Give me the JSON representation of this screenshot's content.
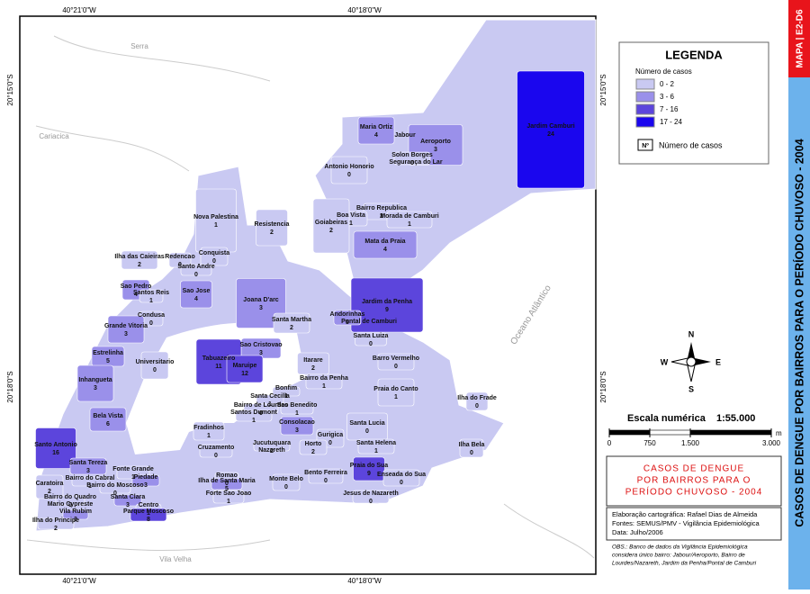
{
  "map": {
    "side_code": "MAPA | E2-D6",
    "side_title": "CASOS DE DENGUE POR BAIRROS  PARA O PERÍODO CHUVOSO - 2004",
    "coordinates": {
      "top": [
        "40°21'0\"W",
        "40°18'0\"W"
      ],
      "bottom": [
        "40°21'0\"W",
        "40°18'0\"W"
      ],
      "left": [
        "20°15'0\"S",
        "20°18'0\"S"
      ],
      "right": [
        "20°15'0\"S",
        "20°18'0\"S"
      ]
    },
    "places": [
      "Serra",
      "Cariacica",
      "Vila Velha",
      "Oceano Atlântico"
    ],
    "legend": {
      "title": "LEGENDA",
      "subtitle": "Número de casos",
      "classes": [
        {
          "label": "0 - 2",
          "color": "#c9c9f2"
        },
        {
          "label": "3 - 6",
          "color": "#9a90ea"
        },
        {
          "label": "7 - 16",
          "color": "#5c45dc"
        },
        {
          "label": "17 - 24",
          "color": "#1a06ee"
        }
      ],
      "symbol": "Nº",
      "symbol_label": "Número de casos"
    },
    "compass": [
      "N",
      "S",
      "E",
      "W"
    ],
    "scale": {
      "title": "Escala numérica",
      "ratio": "1:55.000",
      "unit": "m",
      "xlim": [
        0,
        3000
      ],
      "ticks": [
        0,
        750,
        {
          "value": 1500,
          "label": "1.500"
        },
        {
          "value": 3000,
          "label": "3.000"
        }
      ]
    },
    "title_box": [
      "CASOS DE DENGUE",
      "POR BAIRROS PARA O",
      "PERÍODO CHUVOSO - 2004"
    ],
    "credits": [
      "Elaboração cartográfica: Rafael Dias de Almeida",
      "Fontes: SEMUS/PMV - Vigilância Epidemiológica",
      "Data: Julho/2006"
    ],
    "notes": [
      "OBS.: Banco de dados da Vigilância Epidemiológica",
      "considera único bairro: Jabour/Aeroporto, Bairro de",
      "Lourdes/Nazareth, Jardim da Penha/Pontal de Camburi"
    ],
    "neighborhoods": [
      {
        "name": "Jardim Camburi",
        "cases": 24
      },
      {
        "name": "Maria Ortiz",
        "cases": 4
      },
      {
        "name": "Jabour"
      },
      {
        "name": "Aeroporto",
        "cases": 3
      },
      {
        "name": "Solon Borges",
        "cases": 0
      },
      {
        "name": "Segurança do Lar"
      },
      {
        "name": "Antonio Honorio",
        "cases": 0
      },
      {
        "name": "Bairro Republica",
        "cases": 2
      },
      {
        "name": "Boa Vista",
        "cases": 1
      },
      {
        "name": "Morada de Camburi",
        "cases": 1
      },
      {
        "name": "Goiabeiras",
        "cases": 2
      },
      {
        "name": "Mata da Praia",
        "cases": 4
      },
      {
        "name": "Nova Palestina",
        "cases": 1
      },
      {
        "name": "Resistencia",
        "cases": 2
      },
      {
        "name": "Ilha das Caieiras",
        "cases": 2
      },
      {
        "name": "Redencao",
        "cases": 0
      },
      {
        "name": "Conquista",
        "cases": 0
      },
      {
        "name": "Santo Andre",
        "cases": 0
      },
      {
        "name": "Sao Pedro",
        "cases": 4
      },
      {
        "name": "Santos Reis",
        "cases": 1
      },
      {
        "name": "Sao Jose",
        "cases": 4
      },
      {
        "name": "Joana D'arc",
        "cases": 3
      },
      {
        "name": "Jardim da Penha",
        "cases": 9
      },
      {
        "name": "Condusa",
        "cases": 0
      },
      {
        "name": "Grande Vitoria",
        "cases": 3
      },
      {
        "name": "Santa Martha",
        "cases": 2
      },
      {
        "name": "Andorinhas",
        "cases": 5
      },
      {
        "name": "Pontal de Camburi"
      },
      {
        "name": "Santa Luiza",
        "cases": 0
      },
      {
        "name": "Sao Cristovao",
        "cases": 3
      },
      {
        "name": "Estrelinha",
        "cases": 5
      },
      {
        "name": "Tabuazeiro",
        "cases": 11
      },
      {
        "name": "Universitario",
        "cases": 0
      },
      {
        "name": "Maruipe",
        "cases": 12
      },
      {
        "name": "Itarare",
        "cases": 2
      },
      {
        "name": "Barro Vermelho",
        "cases": 0
      },
      {
        "name": "Bairro da Penha",
        "cases": 1
      },
      {
        "name": "Inhangueta",
        "cases": 3
      },
      {
        "name": "Praia do Canto",
        "cases": 1
      },
      {
        "name": "Santa Cecilia",
        "cases": 1
      },
      {
        "name": "Bonfim",
        "cases": 1
      },
      {
        "name": "Ilha do Frade",
        "cases": 0
      },
      {
        "name": "Sao Benedito",
        "cases": 1
      },
      {
        "name": "Bairro de Lourdes",
        "cases": 0
      },
      {
        "name": "Santos Dumont",
        "cases": 1
      },
      {
        "name": "Bela Vista",
        "cases": 6
      },
      {
        "name": "Fradinhos",
        "cases": 1
      },
      {
        "name": "Consolacao",
        "cases": 3
      },
      {
        "name": "Gurigica",
        "cases": 0
      },
      {
        "name": "Santa Lucia",
        "cases": 0
      },
      {
        "name": "Santo Antonio",
        "cases": 16
      },
      {
        "name": "Cruzamento",
        "cases": 0
      },
      {
        "name": "Jucutuquara",
        "cases": 2
      },
      {
        "name": "Nazareth"
      },
      {
        "name": "Horto",
        "cases": 2
      },
      {
        "name": "Santa Helena",
        "cases": 1
      },
      {
        "name": "Ilha Bela",
        "cases": 0
      },
      {
        "name": "Santa Tereza",
        "cases": 3
      },
      {
        "name": "Praia do Sua",
        "cases": 9
      },
      {
        "name": "Fonte Grande",
        "cases": 1
      },
      {
        "name": "Caratoira",
        "cases": 2
      },
      {
        "name": "Romao",
        "cases": 0
      },
      {
        "name": "Bento Ferreira",
        "cases": 0
      },
      {
        "name": "Enseada do Sua",
        "cases": 0
      },
      {
        "name": "Bairro do Cabral",
        "cases": 1
      },
      {
        "name": "Piedade",
        "cases": 3
      },
      {
        "name": "Bairro do Moscoso",
        "cases": 0
      },
      {
        "name": "Ilha de Santa Maria",
        "cases": 5
      },
      {
        "name": "Monte Belo",
        "cases": 0
      },
      {
        "name": "Bairro do Quadro",
        "cases": 0
      },
      {
        "name": "Santa Clara",
        "cases": 3
      },
      {
        "name": "Forte Sao Joao",
        "cases": 1
      },
      {
        "name": "Jesus de Nazareth",
        "cases": 0
      },
      {
        "name": "Mario Cypreste"
      },
      {
        "name": "Vila Rubim",
        "cases": 3
      },
      {
        "name": "Centro",
        "cases": 1
      },
      {
        "name": "Parque Moscoso",
        "cases": 8
      },
      {
        "name": "Ilha do Principe",
        "cases": 2
      }
    ]
  }
}
